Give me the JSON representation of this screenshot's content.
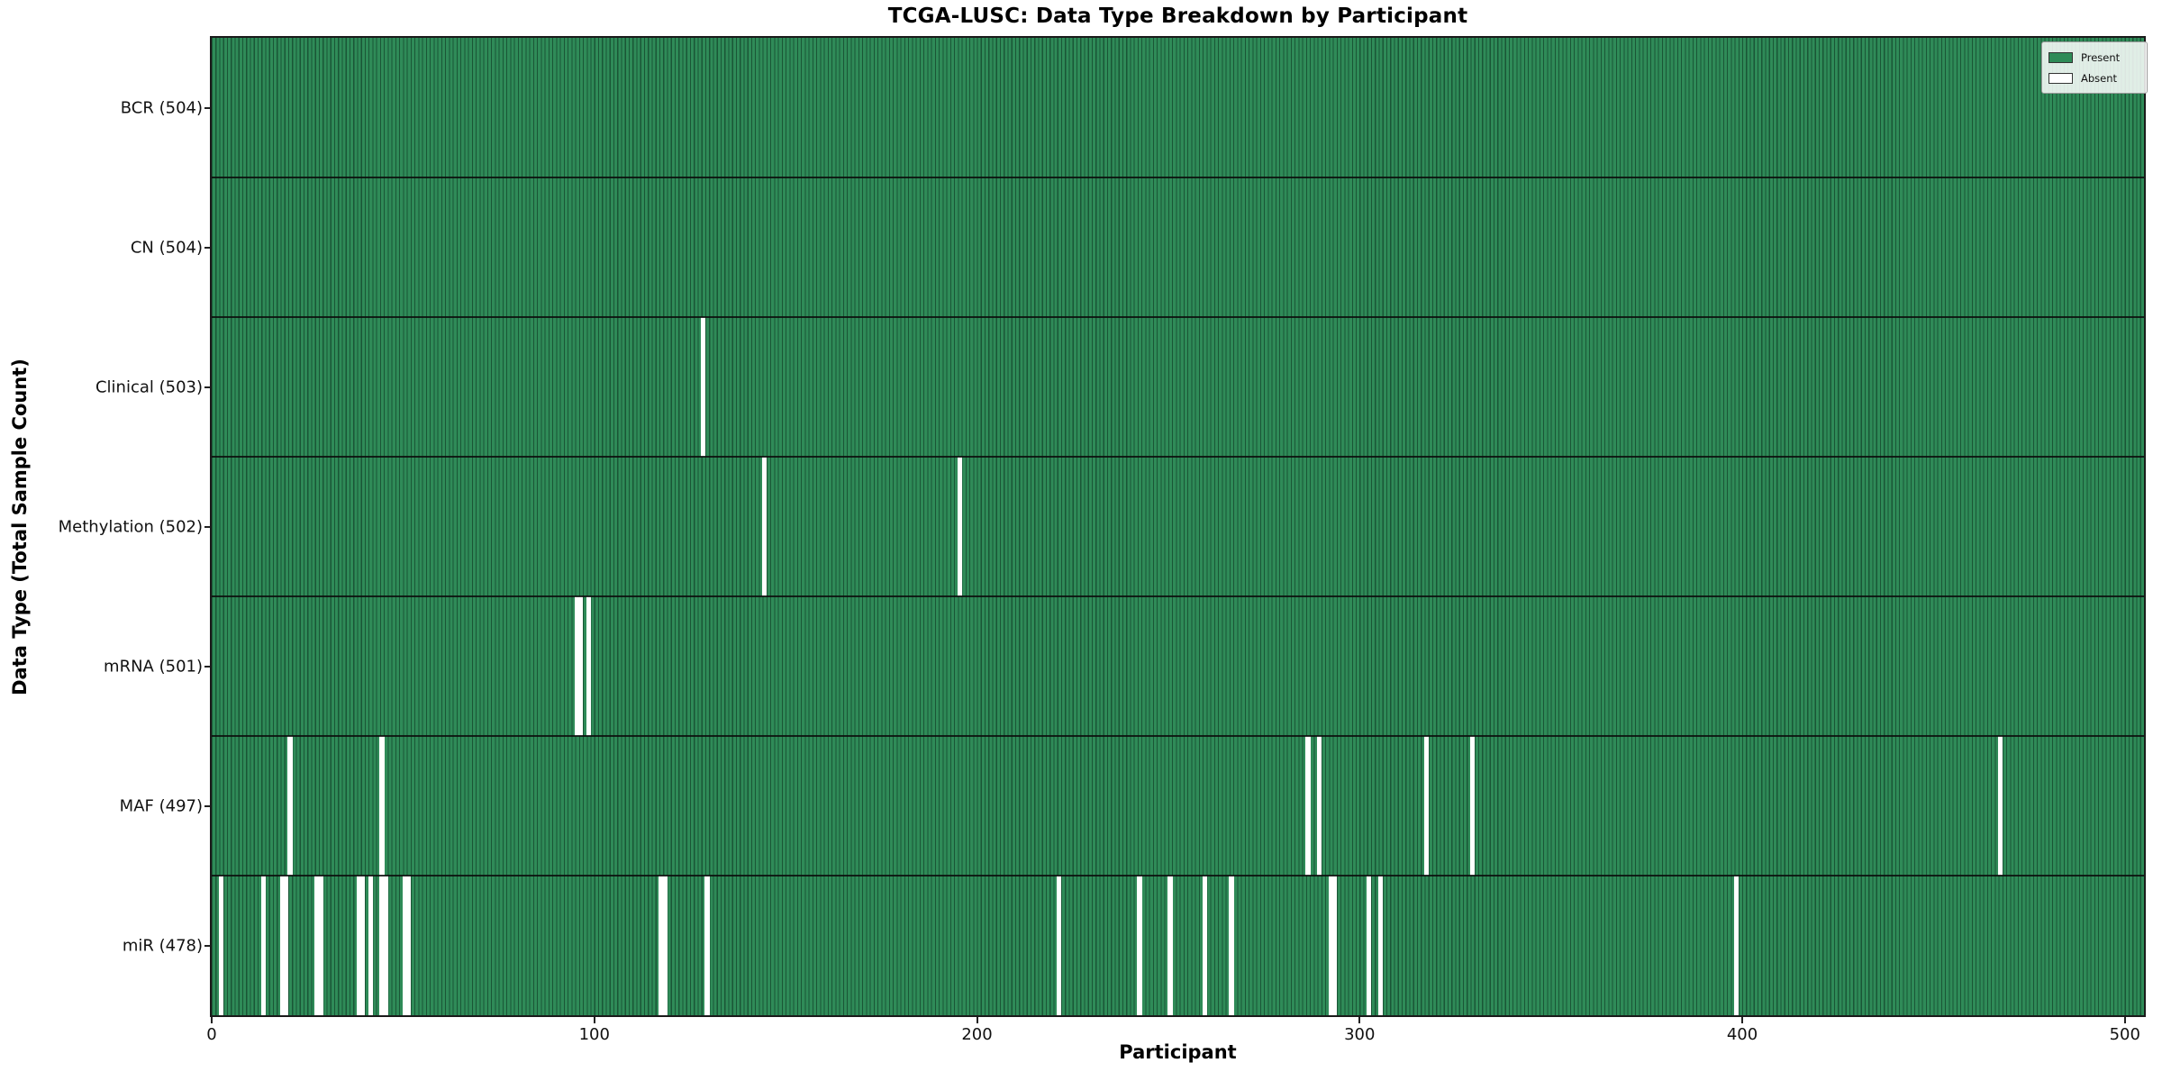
{
  "chart_data": {
    "type": "heatmap",
    "title": "TCGA-LUSC: Data Type Breakdown by Participant",
    "xlabel": "Participant",
    "ylabel": "Data Type (Total Sample Count)",
    "x_ticks": [
      0,
      100,
      200,
      300,
      400,
      500
    ],
    "xlim": [
      0,
      505
    ],
    "n_participants": 504,
    "grid": false,
    "colors": {
      "present": "#2e8b57",
      "absent": "#ffffff",
      "bar_edge": "#14321f",
      "row_separator": "#0c0c0c"
    },
    "legend": {
      "position": "upper right",
      "entries": [
        {
          "label": "Present",
          "color": "#2e8b57"
        },
        {
          "label": "Absent",
          "color": "#ffffff"
        }
      ]
    },
    "rows": [
      {
        "label": "BCR",
        "total": 504,
        "tick_label": "BCR (504)",
        "absent_participants": []
      },
      {
        "label": "CN",
        "total": 504,
        "tick_label": "CN (504)",
        "absent_participants": []
      },
      {
        "label": "Clinical",
        "total": 503,
        "tick_label": "Clinical (503)",
        "absent_participants": [
          128
        ]
      },
      {
        "label": "Methylation",
        "total": 502,
        "tick_label": "Methylation (502)",
        "absent_participants": [
          144,
          195
        ]
      },
      {
        "label": "mRNA",
        "total": 501,
        "tick_label": "mRNA (501)",
        "absent_participants": [
          95,
          96,
          98
        ]
      },
      {
        "label": "MAF",
        "total": 497,
        "tick_label": "MAF (497)",
        "absent_participants": [
          20,
          44,
          286,
          289,
          317,
          329,
          467
        ]
      },
      {
        "label": "miR",
        "total": 478,
        "tick_label": "miR (478)",
        "absent_participants": [
          2,
          13,
          18,
          19,
          27,
          28,
          38,
          39,
          41,
          44,
          45,
          50,
          51,
          117,
          118,
          129,
          221,
          242,
          250,
          259,
          266,
          292,
          293,
          302,
          305,
          398
        ]
      }
    ]
  }
}
